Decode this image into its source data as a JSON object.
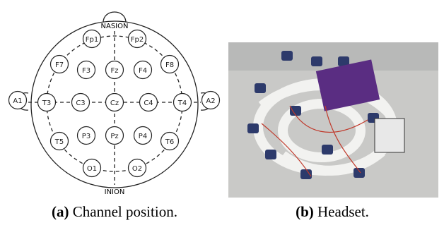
{
  "figure": {
    "panel_a": {
      "nasion": "NASION",
      "inion": "INION",
      "electrodes": [
        "Fp1",
        "Fp2",
        "F7",
        "F3",
        "Fz",
        "F4",
        "F8",
        "A1",
        "T3",
        "C3",
        "Cz",
        "C4",
        "T4",
        "A2",
        "T5",
        "P3",
        "Pz",
        "P4",
        "T6",
        "O1",
        "O2"
      ]
    },
    "captions": [
      {
        "label": "(a)",
        "text": "Channel position."
      },
      {
        "label": "(b)",
        "text": "Headset."
      }
    ]
  }
}
